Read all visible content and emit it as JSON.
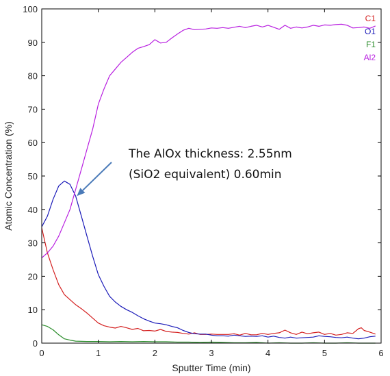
{
  "chart_data": {
    "type": "line",
    "title": "",
    "xlabel": "Sputter Time (min)",
    "ylabel": "Atomic Concentration (%)",
    "xlim": [
      0,
      6
    ],
    "ylim": [
      0,
      100
    ],
    "x_ticks": [
      "0",
      "1",
      "2",
      "3",
      "4",
      "5",
      "6"
    ],
    "y_ticks": [
      "0",
      "10",
      "20",
      "30",
      "40",
      "50",
      "60",
      "70",
      "80",
      "90",
      "100"
    ],
    "grid": false,
    "legend_position": "top-right",
    "series": [
      {
        "name": "C1",
        "color": "#d42020",
        "points": [
          [
            0,
            34.5
          ],
          [
            0.1,
            27
          ],
          [
            0.2,
            22
          ],
          [
            0.3,
            17.5
          ],
          [
            0.4,
            14.5
          ],
          [
            0.5,
            13
          ],
          [
            0.6,
            11.5
          ],
          [
            0.7,
            10.3
          ],
          [
            0.8,
            9
          ],
          [
            0.9,
            7.5
          ],
          [
            1.0,
            6
          ],
          [
            1.1,
            5.2
          ],
          [
            1.2,
            4.8
          ],
          [
            1.3,
            4.5
          ],
          [
            1.4,
            5
          ],
          [
            1.5,
            4.6
          ],
          [
            1.6,
            4.1
          ],
          [
            1.7,
            4.4
          ],
          [
            1.8,
            3.7
          ],
          [
            1.9,
            3.8
          ],
          [
            2.0,
            3.6
          ],
          [
            2.1,
            4.1
          ],
          [
            2.2,
            3.5
          ],
          [
            2.3,
            3.3
          ],
          [
            2.4,
            3.2
          ],
          [
            2.5,
            2.9
          ],
          [
            2.6,
            2.7
          ],
          [
            2.7,
            3.1
          ],
          [
            2.8,
            2.6
          ],
          [
            2.9,
            2.6
          ],
          [
            3.0,
            2.7
          ],
          [
            3.1,
            2.6
          ],
          [
            3.2,
            2.6
          ],
          [
            3.3,
            2.6
          ],
          [
            3.4,
            2.8
          ],
          [
            3.5,
            2.4
          ],
          [
            3.6,
            2.9
          ],
          [
            3.7,
            2.5
          ],
          [
            3.8,
            2.5
          ],
          [
            3.9,
            2.9
          ],
          [
            4.0,
            2.6
          ],
          [
            4.1,
            2.9
          ],
          [
            4.2,
            3.1
          ],
          [
            4.3,
            3.9
          ],
          [
            4.4,
            3.1
          ],
          [
            4.5,
            2.6
          ],
          [
            4.6,
            3.3
          ],
          [
            4.7,
            2.8
          ],
          [
            4.8,
            3.1
          ],
          [
            4.9,
            3.3
          ],
          [
            5.0,
            2.6
          ],
          [
            5.1,
            2.9
          ],
          [
            5.2,
            2.4
          ],
          [
            5.3,
            2.6
          ],
          [
            5.4,
            3.1
          ],
          [
            5.5,
            2.9
          ],
          [
            5.6,
            4.3
          ],
          [
            5.65,
            4.6
          ],
          [
            5.7,
            3.8
          ],
          [
            5.8,
            3.3
          ],
          [
            5.9,
            2.7
          ]
        ]
      },
      {
        "name": "O1",
        "color": "#1a1ab8",
        "points": [
          [
            0,
            34.8
          ],
          [
            0.1,
            38
          ],
          [
            0.2,
            43
          ],
          [
            0.3,
            47
          ],
          [
            0.4,
            48.5
          ],
          [
            0.5,
            47.5
          ],
          [
            0.6,
            44
          ],
          [
            0.7,
            38
          ],
          [
            0.8,
            32
          ],
          [
            0.9,
            26
          ],
          [
            1.0,
            20.5
          ],
          [
            1.1,
            17
          ],
          [
            1.2,
            14
          ],
          [
            1.3,
            12.3
          ],
          [
            1.4,
            11
          ],
          [
            1.5,
            10
          ],
          [
            1.6,
            9.2
          ],
          [
            1.7,
            8.2
          ],
          [
            1.8,
            7.3
          ],
          [
            1.9,
            6.6
          ],
          [
            2.0,
            6
          ],
          [
            2.1,
            5.8
          ],
          [
            2.2,
            5.5
          ],
          [
            2.3,
            5
          ],
          [
            2.4,
            4.6
          ],
          [
            2.5,
            3.8
          ],
          [
            2.6,
            3.2
          ],
          [
            2.7,
            2.8
          ],
          [
            2.8,
            2.7
          ],
          [
            2.9,
            2.7
          ],
          [
            3.0,
            2.4
          ],
          [
            3.1,
            2.2
          ],
          [
            3.2,
            2.2
          ],
          [
            3.3,
            2.1
          ],
          [
            3.4,
            2.4
          ],
          [
            3.5,
            2.2
          ],
          [
            3.6,
            2.0
          ],
          [
            3.7,
            2.1
          ],
          [
            3.8,
            2.0
          ],
          [
            3.9,
            2.2
          ],
          [
            4.0,
            1.8
          ],
          [
            4.1,
            2.1
          ],
          [
            4.2,
            1.7
          ],
          [
            4.3,
            1.5
          ],
          [
            4.4,
            1.8
          ],
          [
            4.5,
            1.5
          ],
          [
            4.6,
            1.6
          ],
          [
            4.7,
            1.7
          ],
          [
            4.8,
            1.8
          ],
          [
            4.9,
            2.2
          ],
          [
            5.0,
            2.0
          ],
          [
            5.1,
            1.9
          ],
          [
            5.2,
            1.7
          ],
          [
            5.3,
            1.6
          ],
          [
            5.4,
            1.8
          ],
          [
            5.5,
            1.5
          ],
          [
            5.6,
            1.3
          ],
          [
            5.7,
            1.5
          ],
          [
            5.8,
            1.9
          ],
          [
            5.9,
            2.1
          ]
        ]
      },
      {
        "name": "F1",
        "color": "#2a8c2a",
        "points": [
          [
            0,
            5.5
          ],
          [
            0.1,
            5
          ],
          [
            0.2,
            4
          ],
          [
            0.3,
            2.5
          ],
          [
            0.4,
            1.3
          ],
          [
            0.5,
            0.9
          ],
          [
            0.6,
            0.6
          ],
          [
            0.8,
            0.5
          ],
          [
            1.0,
            0.5
          ],
          [
            1.2,
            0.4
          ],
          [
            1.4,
            0.5
          ],
          [
            1.6,
            0.4
          ],
          [
            1.8,
            0.5
          ],
          [
            2.0,
            0.4
          ],
          [
            2.2,
            0.4
          ],
          [
            2.4,
            0.3
          ],
          [
            2.6,
            0.3
          ],
          [
            2.8,
            0.2
          ],
          [
            3.0,
            0.3
          ],
          [
            3.2,
            0.2
          ],
          [
            3.4,
            0.1
          ],
          [
            3.6,
            0.1
          ],
          [
            3.8,
            0.2
          ],
          [
            4.0,
            0.0
          ],
          [
            4.2,
            0.1
          ],
          [
            4.4,
            0.0
          ],
          [
            4.6,
            0.0
          ],
          [
            4.8,
            0.1
          ],
          [
            5.0,
            0.0
          ],
          [
            5.2,
            0.0
          ],
          [
            5.4,
            0.1
          ],
          [
            5.6,
            0.0
          ],
          [
            5.9,
            0.0
          ]
        ]
      },
      {
        "name": "Al2",
        "color": "#b81ee0",
        "points": [
          [
            0,
            25.5
          ],
          [
            0.1,
            27
          ],
          [
            0.2,
            29
          ],
          [
            0.3,
            32
          ],
          [
            0.4,
            36
          ],
          [
            0.5,
            40
          ],
          [
            0.6,
            46
          ],
          [
            0.7,
            52
          ],
          [
            0.8,
            58
          ],
          [
            0.9,
            64
          ],
          [
            1.0,
            71.5
          ],
          [
            1.1,
            76
          ],
          [
            1.2,
            80
          ],
          [
            1.3,
            82
          ],
          [
            1.4,
            84
          ],
          [
            1.5,
            85.5
          ],
          [
            1.6,
            87
          ],
          [
            1.7,
            88.2
          ],
          [
            1.8,
            88.7
          ],
          [
            1.9,
            89.3
          ],
          [
            2.0,
            90.8
          ],
          [
            2.1,
            89.8
          ],
          [
            2.2,
            90
          ],
          [
            2.3,
            91.3
          ],
          [
            2.4,
            92.5
          ],
          [
            2.5,
            93.6
          ],
          [
            2.6,
            94.2
          ],
          [
            2.7,
            93.8
          ],
          [
            2.8,
            93.9
          ],
          [
            2.9,
            94
          ],
          [
            3.0,
            94.3
          ],
          [
            3.1,
            94.2
          ],
          [
            3.2,
            94.4
          ],
          [
            3.3,
            94.2
          ],
          [
            3.4,
            94.5
          ],
          [
            3.5,
            94.8
          ],
          [
            3.6,
            94.4
          ],
          [
            3.7,
            94.8
          ],
          [
            3.8,
            95.1
          ],
          [
            3.9,
            94.6
          ],
          [
            4.0,
            95.1
          ],
          [
            4.1,
            94.5
          ],
          [
            4.2,
            93.9
          ],
          [
            4.3,
            95.1
          ],
          [
            4.4,
            94.2
          ],
          [
            4.5,
            94.6
          ],
          [
            4.6,
            94.3
          ],
          [
            4.7,
            94.6
          ],
          [
            4.8,
            95.1
          ],
          [
            4.9,
            94.8
          ],
          [
            5.0,
            95.2
          ],
          [
            5.1,
            95.1
          ],
          [
            5.2,
            95.3
          ],
          [
            5.3,
            95.4
          ],
          [
            5.4,
            95.1
          ],
          [
            5.5,
            94.3
          ],
          [
            5.6,
            94.4
          ],
          [
            5.7,
            94.6
          ],
          [
            5.8,
            94.2
          ],
          [
            5.9,
            94.9
          ]
        ]
      }
    ],
    "annotation": {
      "lines": [
        "The AlOx thickness: 2.55nm",
        "(SiO2 equivalent) 0.60min"
      ],
      "arrow_target": [
        0.62,
        44
      ],
      "arrow_color": "#4a7ab8"
    }
  }
}
